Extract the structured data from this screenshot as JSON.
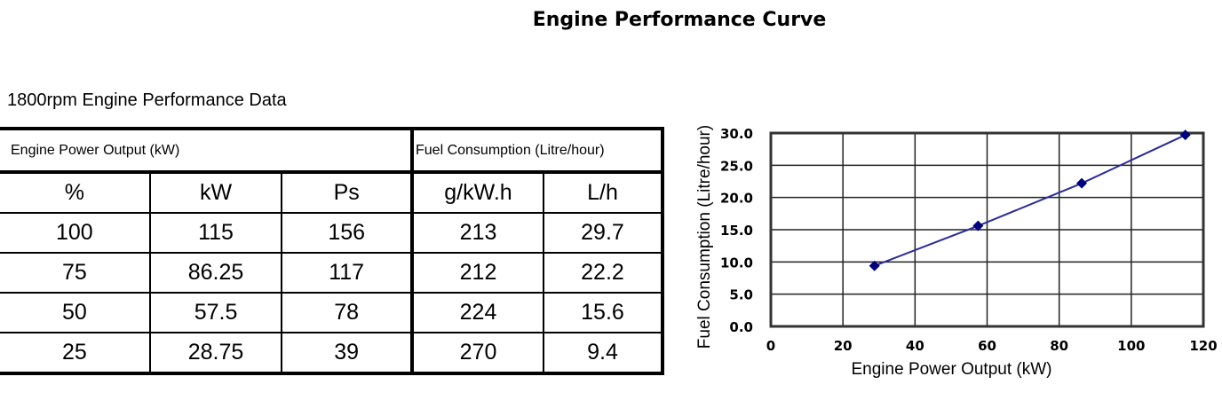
{
  "title": "Engine Performance Curve",
  "table": {
    "caption": "1800rpm Engine Performance Data",
    "group_headers": [
      "Engine Power Output (kW)",
      "Fuel Consumption (Litre/hour)"
    ],
    "columns": [
      "%",
      "kW",
      "Ps",
      "g/kW.h",
      "L/h"
    ],
    "rows": [
      [
        "100",
        "115",
        "156",
        "213",
        "29.7"
      ],
      [
        "75",
        "86.25",
        "117",
        "212",
        "22.2"
      ],
      [
        "50",
        "57.5",
        "78",
        "224",
        "15.6"
      ],
      [
        "25",
        "28.75",
        "39",
        "270",
        "9.4"
      ]
    ]
  },
  "chart_data": {
    "type": "line",
    "xlabel": "Engine Power Output (kW)",
    "ylabel": "Fuel Consumption (Litre/hour)",
    "xlim": [
      0,
      120
    ],
    "ylim": [
      0,
      30
    ],
    "xticks": [
      "0",
      "20",
      "40",
      "60",
      "80",
      "100",
      "120"
    ],
    "yticks": [
      "0.0",
      "5.0",
      "10.0",
      "15.0",
      "20.0",
      "25.0",
      "30.0"
    ],
    "grid": true,
    "series": [
      {
        "x": [
          28.75,
          57.5,
          86.25,
          115
        ],
        "y": [
          9.4,
          15.6,
          22.2,
          29.7
        ],
        "color": "#2b2b9a",
        "marker": "diamond",
        "marker_color": "#000080"
      }
    ]
  }
}
